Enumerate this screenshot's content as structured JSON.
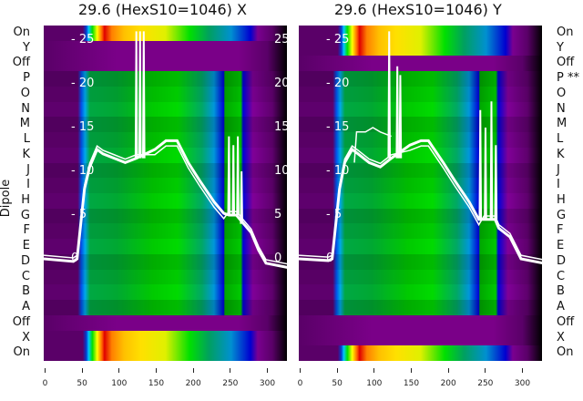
{
  "chart_data": [
    {
      "type": "heatmap",
      "title": "29.6 (HexS10=1046) X",
      "ylabel": "Dipole",
      "row_labels": [
        "On",
        "Y",
        "Off",
        "P",
        "O",
        "N",
        "M",
        "L",
        "K",
        "J",
        "I",
        "H",
        "G",
        "F",
        "E",
        "D",
        "C",
        "B",
        "A",
        "Off",
        "X",
        "On"
      ],
      "row_kinds": [
        "on",
        "off",
        "off",
        "g",
        "g",
        "g",
        "g",
        "g",
        "g",
        "g",
        "g",
        "g",
        "g",
        "g",
        "g",
        "g",
        "g",
        "g",
        "g",
        "off",
        "on",
        "on"
      ],
      "xticks": [
        0,
        50,
        100,
        150,
        200,
        250,
        300
      ],
      "xlim": [
        0,
        330
      ],
      "overlay_yticks": [
        0,
        5,
        10,
        15,
        20,
        25
      ],
      "overlay_ylim": [
        -2,
        26
      ],
      "overlay_main": [
        [
          0,
          0
        ],
        [
          40,
          -0.3
        ],
        [
          45,
          0
        ],
        [
          50,
          4
        ],
        [
          55,
          8
        ],
        [
          62,
          10.5
        ],
        [
          72,
          12.5
        ],
        [
          80,
          12
        ],
        [
          95,
          11.5
        ],
        [
          110,
          11
        ],
        [
          125,
          11.5
        ],
        [
          150,
          12.5
        ],
        [
          165,
          13.5
        ],
        [
          180,
          13.5
        ],
        [
          195,
          11
        ],
        [
          210,
          9
        ],
        [
          230,
          6.5
        ],
        [
          243,
          5.2
        ],
        [
          250,
          5
        ],
        [
          260,
          5
        ],
        [
          270,
          4
        ],
        [
          280,
          3
        ],
        [
          290,
          1
        ],
        [
          300,
          -0.5
        ],
        [
          330,
          -1
        ]
      ],
      "overlay_spikes": [
        [
          125,
          26
        ],
        [
          130,
          26
        ],
        [
          135,
          26
        ],
        [
          250,
          14
        ],
        [
          256,
          13
        ],
        [
          262,
          14
        ],
        [
          267,
          10
        ]
      ]
    },
    {
      "type": "heatmap",
      "title": "29.6 (HexS10=1046) Y",
      "row_labels": [
        "On",
        "Y",
        "Off",
        "P **",
        "O",
        "N",
        "M",
        "L",
        "K",
        "J",
        "I",
        "H",
        "G",
        "F",
        "E",
        "D",
        "C",
        "B",
        "A",
        "Off",
        "X",
        "On"
      ],
      "row_kinds": [
        "on",
        "on",
        "off",
        "g",
        "g",
        "g",
        "g",
        "g",
        "g",
        "g",
        "g",
        "g",
        "g",
        "g",
        "g",
        "g",
        "g",
        "g",
        "g",
        "off",
        "off",
        "on"
      ],
      "xticks": [
        0,
        50,
        100,
        150,
        200,
        250,
        300
      ],
      "xlim": [
        0,
        330
      ],
      "overlay_yticks": [
        0,
        5,
        10,
        15,
        20,
        25
      ],
      "overlay_ylim": [
        -2,
        26
      ],
      "overlay_main": [
        [
          0,
          0
        ],
        [
          40,
          -0.2
        ],
        [
          45,
          0
        ],
        [
          50,
          4
        ],
        [
          55,
          8
        ],
        [
          62,
          11
        ],
        [
          72,
          12.5
        ],
        [
          80,
          12
        ],
        [
          95,
          11
        ],
        [
          110,
          10.5
        ],
        [
          125,
          11.5
        ],
        [
          150,
          13
        ],
        [
          165,
          13.5
        ],
        [
          175,
          13.5
        ],
        [
          195,
          11
        ],
        [
          210,
          9
        ],
        [
          230,
          6.5
        ],
        [
          243,
          4.5
        ],
        [
          250,
          4.5
        ],
        [
          265,
          4.5
        ],
        [
          270,
          3.5
        ],
        [
          285,
          2.5
        ],
        [
          300,
          0
        ],
        [
          330,
          -0.5
        ]
      ],
      "overlay_upper": [
        [
          75,
          11
        ],
        [
          78,
          14.5
        ],
        [
          90,
          14.5
        ],
        [
          100,
          15
        ],
        [
          110,
          14.5
        ],
        [
          125,
          14
        ]
      ],
      "overlay_spikes": [
        [
          122,
          26
        ],
        [
          133,
          22
        ],
        [
          137,
          21
        ],
        [
          245,
          17
        ],
        [
          252,
          15
        ],
        [
          260,
          18
        ],
        [
          266,
          13
        ]
      ]
    }
  ]
}
